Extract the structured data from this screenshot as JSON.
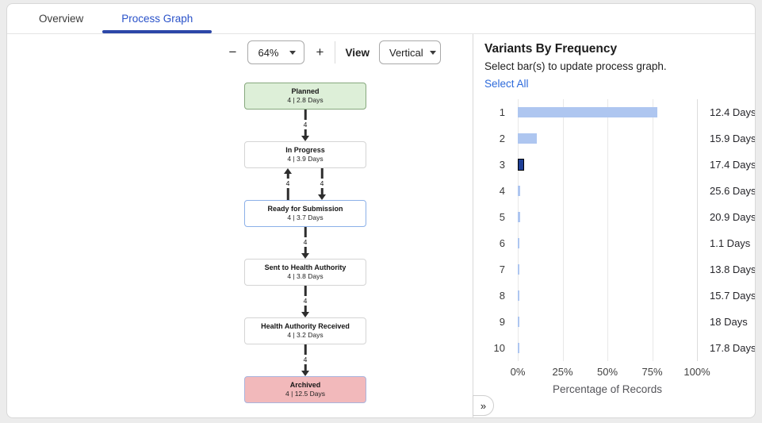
{
  "colors": {
    "active_tab": "#2a52c9",
    "tab_underline": "#2c47a8",
    "link": "#2e6bdb",
    "bar": "#aec6f0",
    "selected_bar": "#1e3f96",
    "edge": "#2d2d2d"
  },
  "tabs": {
    "overview": "Overview",
    "process_graph": "Process Graph"
  },
  "toolbar": {
    "zoom_out": "−",
    "zoom_level": "64%",
    "zoom_in": "+",
    "view_label": "View",
    "view_value": "Vertical"
  },
  "process_graph": {
    "nodes": [
      {
        "title": "Planned",
        "stats": "4 | 2.8 Days",
        "fill": "#ddefd8",
        "border": "#87a87e"
      },
      {
        "title": "In Progress",
        "stats": "4 | 3.9 Days",
        "fill": "#ffffff",
        "border": "#d4d4d4"
      },
      {
        "title": "Ready for Submission",
        "stats": "4 | 3.7 Days",
        "fill": "#ffffff",
        "border": "#8cb0e8"
      },
      {
        "title": "Sent to Health Authority",
        "stats": "4 | 3.8 Days",
        "fill": "#ffffff",
        "border": "#d4d4d4"
      },
      {
        "title": "Health Authority Received",
        "stats": "4 | 3.2 Days",
        "fill": "#ffffff",
        "border": "#d4d4d4"
      },
      {
        "title": "Archived",
        "stats": "4 | 12.5 Days",
        "fill": "#f2b9bb",
        "border": "#a9b4dd"
      }
    ],
    "edges": [
      {
        "from": "Planned",
        "to": "In Progress",
        "label": "4",
        "direction": "down"
      },
      {
        "from": "Ready for Submission",
        "to": "In Progress",
        "label": "4",
        "direction": "up"
      },
      {
        "from": "In Progress",
        "to": "Ready for Submission",
        "label": "4",
        "direction": "down"
      },
      {
        "from": "Ready for Submission",
        "to": "Sent to Health Authority",
        "label": "4",
        "direction": "down"
      },
      {
        "from": "Sent to Health Authority",
        "to": "Health Authority Received",
        "label": "4",
        "direction": "down"
      },
      {
        "from": "Health Authority Received",
        "to": "Archived",
        "label": "4",
        "direction": "down"
      }
    ]
  },
  "variants_panel": {
    "title": "Variants By Frequency",
    "subtitle": "Select bar(s) to update process graph.",
    "select_all": "Select All",
    "expand_icon": "»"
  },
  "chart_data": {
    "type": "bar",
    "orientation": "horizontal",
    "title": "Variants By Frequency",
    "categories": [
      "1",
      "2",
      "3",
      "4",
      "5",
      "6",
      "7",
      "8",
      "9",
      "10"
    ],
    "values_percent": [
      77.9,
      10.6,
      3.5,
      1.3,
      1.3,
      0.7,
      0.7,
      0.7,
      0.7,
      0.7
    ],
    "duration_labels": [
      "12.4 Days",
      "15.9 Days",
      "17.4 Days",
      "25.6 Days",
      "20.9 Days",
      "1.1 Days",
      "13.8 Days",
      "15.7 Days",
      "18 Days",
      "17.8 Days"
    ],
    "selected_index": 2,
    "x_ticks": [
      "0%",
      "25%",
      "50%",
      "75%",
      "100%"
    ],
    "xlim": [
      0,
      100
    ],
    "xlabel": "Percentage of Records",
    "grid": true,
    "legend": false
  }
}
